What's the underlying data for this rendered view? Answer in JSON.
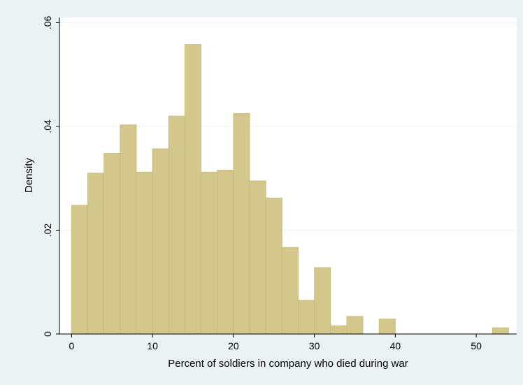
{
  "chart_data": {
    "type": "bar",
    "subtype": "histogram",
    "xlabel": "Percent of soldiers in company who died during war",
    "ylabel": "Density",
    "xlim": [
      -1.5,
      55
    ],
    "ylim": [
      0,
      0.061
    ],
    "x_ticks": [
      0,
      10,
      20,
      30,
      40,
      50
    ],
    "x_tick_labels": [
      "0",
      "10",
      "20",
      "30",
      "40",
      "50"
    ],
    "y_ticks": [
      0,
      0.02,
      0.04,
      0.06
    ],
    "y_tick_labels": [
      "0",
      ".02",
      ".04",
      ".06"
    ],
    "grid": "horizontal",
    "bin_width": 2,
    "bins": [
      {
        "start": 0,
        "end": 2,
        "value": 0.0248
      },
      {
        "start": 2,
        "end": 4,
        "value": 0.031
      },
      {
        "start": 4,
        "end": 6,
        "value": 0.0348
      },
      {
        "start": 6,
        "end": 8,
        "value": 0.0403
      },
      {
        "start": 8,
        "end": 10,
        "value": 0.0312
      },
      {
        "start": 10,
        "end": 12,
        "value": 0.0357
      },
      {
        "start": 12,
        "end": 14,
        "value": 0.042
      },
      {
        "start": 14,
        "end": 16,
        "value": 0.0558
      },
      {
        "start": 16,
        "end": 18,
        "value": 0.0312
      },
      {
        "start": 18,
        "end": 20,
        "value": 0.0316
      },
      {
        "start": 20,
        "end": 22,
        "value": 0.0425
      },
      {
        "start": 22,
        "end": 24,
        "value": 0.0295
      },
      {
        "start": 24,
        "end": 26,
        "value": 0.0262
      },
      {
        "start": 26,
        "end": 28,
        "value": 0.0167
      },
      {
        "start": 28,
        "end": 30,
        "value": 0.0065
      },
      {
        "start": 30,
        "end": 32,
        "value": 0.0128
      },
      {
        "start": 32,
        "end": 34,
        "value": 0.0016
      },
      {
        "start": 34,
        "end": 36,
        "value": 0.0034
      },
      {
        "start": 36,
        "end": 38,
        "value": 0.0
      },
      {
        "start": 38,
        "end": 40,
        "value": 0.0029
      },
      {
        "start": 40,
        "end": 42,
        "value": 0.0
      },
      {
        "start": 42,
        "end": 44,
        "value": 0.0
      },
      {
        "start": 44,
        "end": 46,
        "value": 0.0
      },
      {
        "start": 46,
        "end": 48,
        "value": 0.0
      },
      {
        "start": 48,
        "end": 50,
        "value": 0.0
      },
      {
        "start": 50,
        "end": 52,
        "value": 0.0
      },
      {
        "start": 52,
        "end": 54,
        "value": 0.0012
      }
    ],
    "colors": {
      "background": "#eaf2f3",
      "plot_background": "#ffffff",
      "bar_fill": "#d4c78c",
      "bar_edge": "#c6b877",
      "grid": "#eaf2f3",
      "axis": "#000000"
    }
  }
}
